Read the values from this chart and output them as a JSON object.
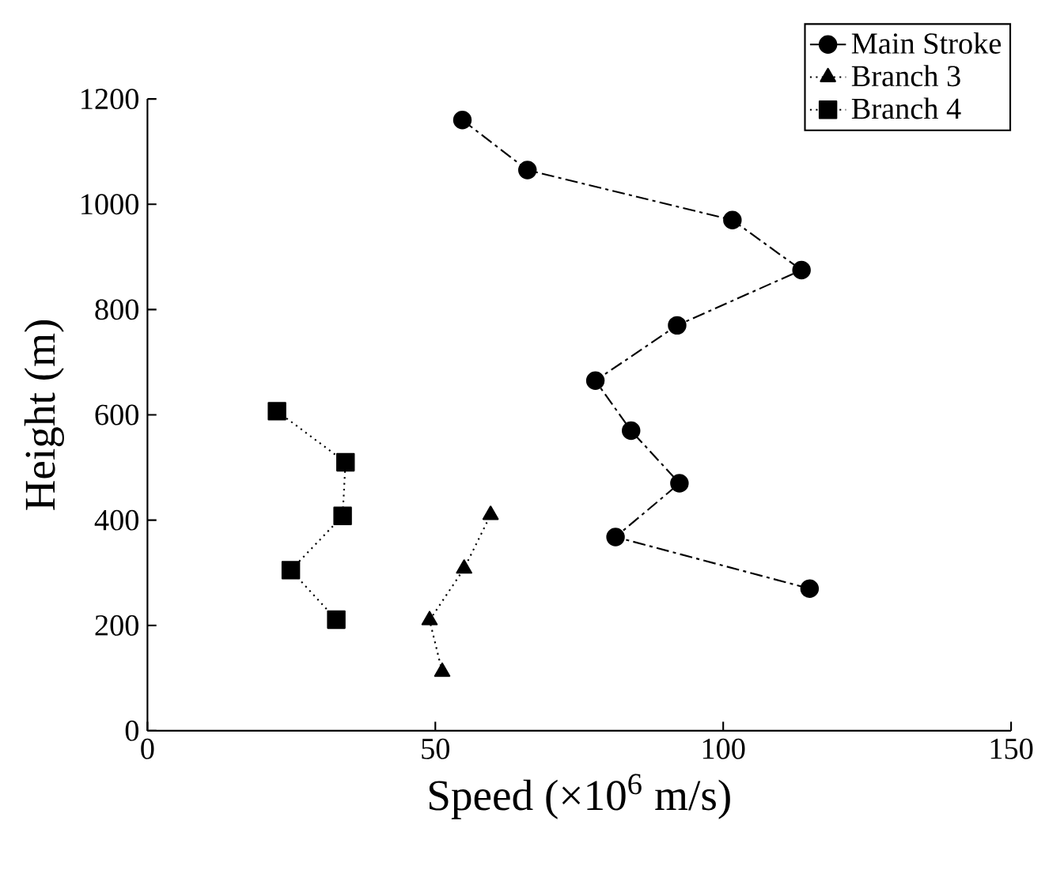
{
  "chart_data": {
    "type": "line",
    "xlabel": "Speed (×10$^{6}$ m/s)",
    "ylabel": "Height (m)",
    "xlim": [
      0,
      150
    ],
    "ylim": [
      0,
      1200
    ],
    "xticks": [
      0,
      50,
      100,
      150
    ],
    "yticks": [
      0,
      200,
      400,
      600,
      800,
      1000,
      1200
    ],
    "legend": "top right",
    "grid": false,
    "series": [
      {
        "name": "Main Stroke",
        "color": "#000000",
        "marker": "circle",
        "line_style": "dashed",
        "x": [
          54.7,
          66,
          101.6,
          113.6,
          92,
          77.8,
          84,
          92.4,
          81.3,
          115
        ],
        "values": [
          1160,
          1065,
          970,
          875,
          770,
          665,
          570,
          470,
          368,
          270
        ]
      },
      {
        "name": "Branch 3",
        "color": "#000000",
        "marker": "triangle",
        "line_style": "dotted",
        "x": [
          51.2,
          49,
          55,
          59.6
        ],
        "values": [
          112,
          210,
          308,
          410
        ]
      },
      {
        "name": "Branch 4",
        "color": "#000000",
        "marker": "square",
        "line_style": "dotted",
        "x": [
          22.5,
          34.4,
          33.9,
          24.9,
          32.8
        ],
        "values": [
          607,
          510,
          408,
          305,
          211
        ]
      }
    ]
  }
}
